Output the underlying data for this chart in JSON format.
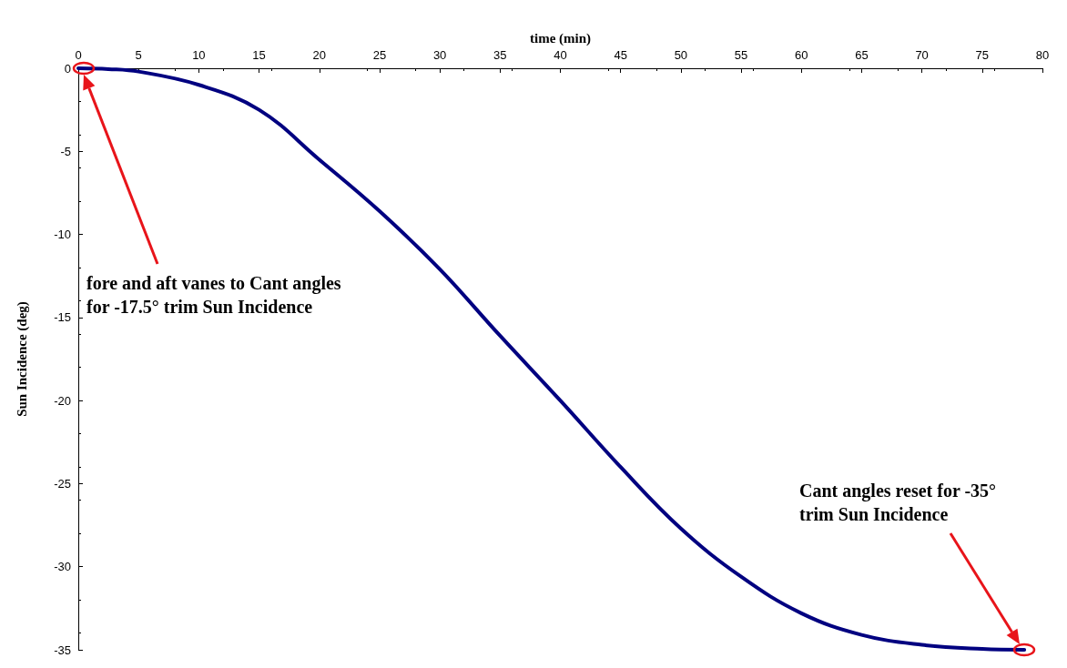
{
  "chart_data": {
    "type": "line",
    "xlabel": "time (min)",
    "ylabel": "Sun Incidence (deg)",
    "x": [
      0,
      2.5,
      5,
      10,
      15,
      20,
      25,
      30,
      35,
      40,
      45,
      50,
      55,
      60,
      65,
      70,
      75,
      78.5
    ],
    "series": [
      {
        "color": "#000080",
        "values": [
          0,
          -0.05,
          -0.2,
          -1.0,
          -2.5,
          -5.5,
          -8.6,
          -12.1,
          -16.1,
          -20.0,
          -24.0,
          -27.7,
          -30.6,
          -32.8,
          -34.1,
          -34.7,
          -34.95,
          -35
        ]
      }
    ],
    "xlim": [
      0,
      80
    ],
    "xticks": [
      0,
      5,
      10,
      15,
      20,
      25,
      30,
      35,
      40,
      45,
      50,
      55,
      60,
      65,
      70,
      75,
      80
    ],
    "ylim": [
      -35,
      0
    ],
    "yticks": [
      -35,
      -30,
      -25,
      -20,
      -15,
      -10,
      -5,
      0
    ],
    "grid": false,
    "marker": "none",
    "line_style": "solid",
    "annotations": [
      "fore and aft vanes to Cant angles\nfor -17.5° trim Sun Incidence",
      "Cant angles reset for -35°\ntrim Sun Incidence"
    ]
  }
}
